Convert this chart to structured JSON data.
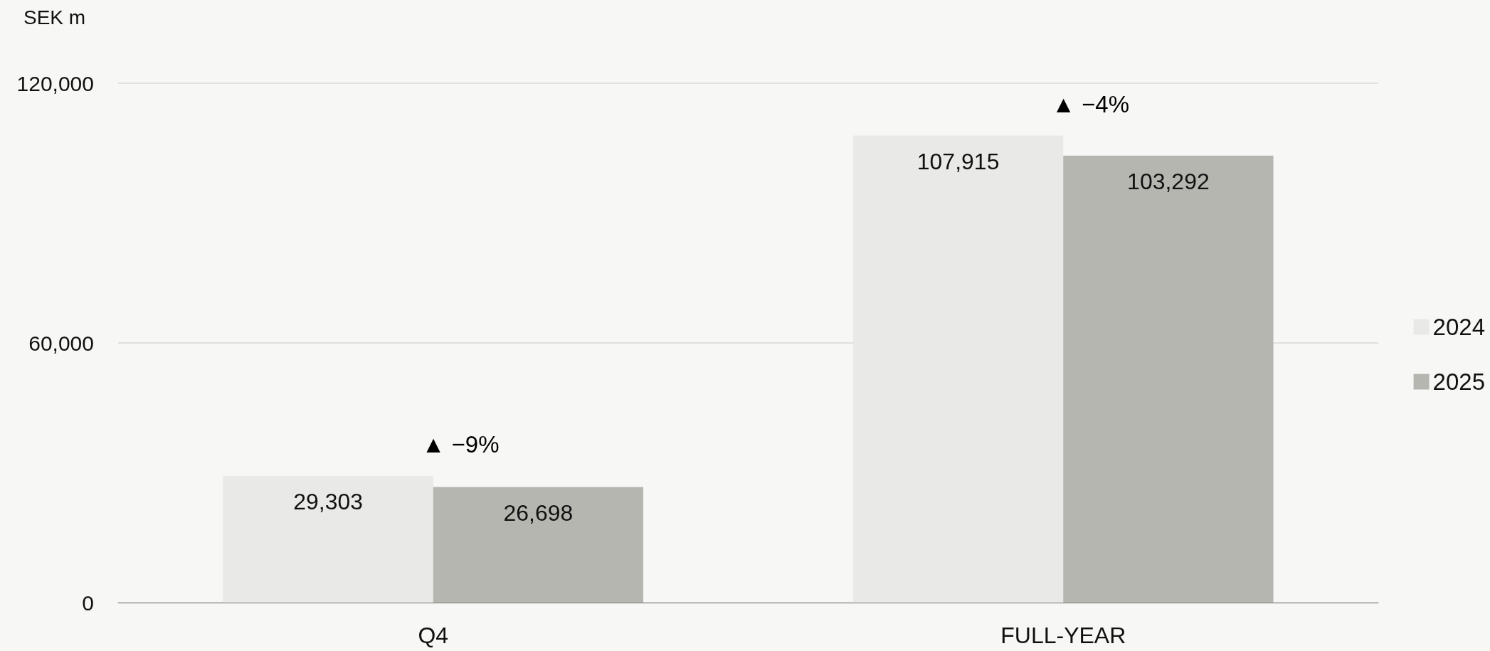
{
  "chart_data": {
    "type": "bar",
    "ylabel": "SEK m",
    "categories": [
      "Q4",
      "FULL-YEAR"
    ],
    "series": [
      {
        "name": "2024",
        "color": "#e9e9e7",
        "values": [
          29303,
          107915
        ],
        "value_labels": [
          "29,303",
          "107,915"
        ]
      },
      {
        "name": "2025",
        "color": "#b6b6b1",
        "values": [
          26698,
          103292
        ],
        "value_labels": [
          "26,698",
          "103,292"
        ]
      }
    ],
    "ylim": [
      0,
      120000
    ],
    "yticks": [
      {
        "value": 0,
        "label": "0"
      },
      {
        "value": 60000,
        "label": "60,000"
      },
      {
        "value": 120000,
        "label": "120,000"
      }
    ],
    "grid": "y",
    "legend": "right",
    "annotations": [
      "▲ −9%",
      "▲ −4%"
    ]
  }
}
